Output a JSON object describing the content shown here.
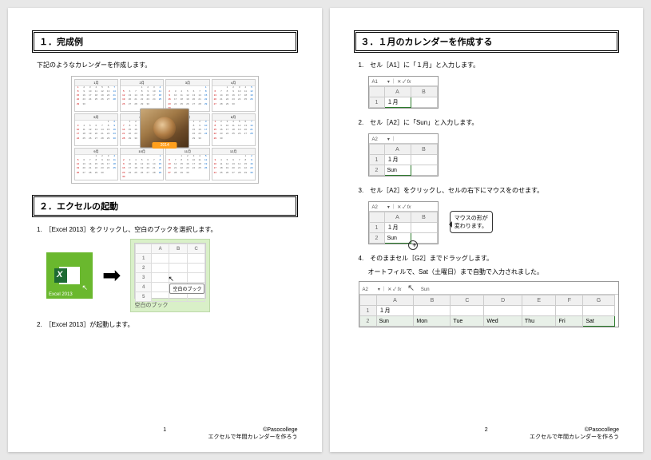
{
  "page1": {
    "section1_title": "１．完成例",
    "section1_intro": "下記のようなカレンダーを作成します。",
    "calendar_year_banner": "2014",
    "section2_title": "２．エクセルの起動",
    "step1": "1.　［Excel 2013］をクリックし、空白のブックを選択します。",
    "excel_tile_label": "Excel 2013",
    "blank_book_label": "空白のブック",
    "blank_book_callout": "空白のブック",
    "step2": "2.　［Excel 2013］が起動します。",
    "cols": [
      "A",
      "B",
      "C"
    ],
    "rows": [
      "1",
      "2",
      "3",
      "4",
      "5"
    ]
  },
  "page2": {
    "section3_title": "３．１月のカレンダーを作成する",
    "s1": "1.　セル［A1］に「１月」と入力します。",
    "s2": "2.　セル［A2］に「Sun」と入力します。",
    "s3": "3.　セル［A2］をクリックし、セルの右下にマウスをのせます。",
    "s3_speech_l1": "マウスの形が",
    "s3_speech_l2": "変わります。",
    "s4": "4.　そのままセル［G2］までドラッグします。",
    "s4b": "オートフィルで、Sat（土曜日）まで自動で入力されました。",
    "shot1": {
      "namebox": "A1",
      "fx": "",
      "colA": "A",
      "colB": "B",
      "r1": "1",
      "a1": "１月"
    },
    "shot2": {
      "namebox": "A2",
      "colA": "A",
      "colB": "B",
      "r1": "1",
      "r2": "2",
      "a1": "１月",
      "a2": "Sun"
    },
    "shot3": {
      "namebox": "A2",
      "fx": "fx",
      "colA": "A",
      "colB": "B",
      "r1": "1",
      "r2": "2",
      "a1": "１月",
      "a2": "Sun"
    },
    "wide": {
      "namebox": "A2",
      "fx": "fx",
      "fxval": "Sun",
      "cols": [
        "A",
        "B",
        "C",
        "D",
        "E",
        "F",
        "G"
      ],
      "r1": "1",
      "r2": "2",
      "a1": "１月",
      "days": [
        "Sun",
        "Mon",
        "Tue",
        "Wed",
        "Thu",
        "Fri",
        "Sat"
      ]
    }
  },
  "footer": {
    "copyright": "©Pasocollege",
    "doc_title": "エクセルで年間カレンダーを作ろう",
    "p1": "1",
    "p2": "2"
  },
  "months": [
    "1月",
    "2月",
    "3月",
    "4月",
    "5月",
    "6月",
    "7月",
    "8月",
    "9月",
    "10月",
    "11月",
    "12月"
  ]
}
